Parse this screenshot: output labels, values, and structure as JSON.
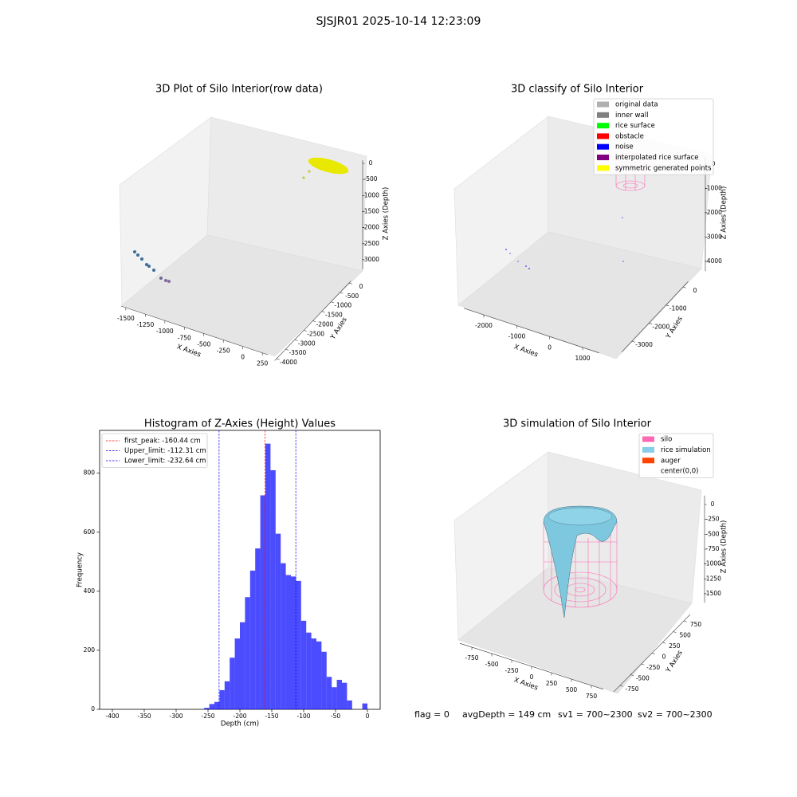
{
  "title": "SJSJR01 2025-10-14 12:23:09",
  "chart_data": [
    {
      "type": "scatter3d",
      "title": "3D Plot of Silo Interior(row data)",
      "xlabel": "X Axies",
      "ylabel": "Y Axies",
      "zlabel": "Z Axies (Depth)",
      "xlim": [
        -1560,
        320
      ],
      "xticks": [
        -1500,
        -1250,
        -1000,
        -750,
        -500,
        -250,
        0,
        250
      ],
      "ylim": [
        -4100,
        100
      ],
      "yticks": [
        0,
        -500,
        -1000,
        -1500,
        -2000,
        -2500,
        -3000,
        -3500,
        -4000
      ],
      "zlim": [
        -3300,
        100
      ],
      "zticks": [
        0,
        -500,
        -1000,
        -1500,
        -2000,
        -2500,
        -3000
      ]
    },
    {
      "type": "scatter3d",
      "title": "3D classify of Silo Interior",
      "xlabel": "X Axies",
      "ylabel": "Y Axies",
      "zlabel": "Z Axies (Depth)",
      "xlim": [
        -2600,
        1500
      ],
      "xticks": [
        -2000,
        -1000,
        0,
        1000
      ],
      "ylim": [
        -3600,
        300
      ],
      "yticks": [
        0,
        -1000,
        -2000,
        -3000
      ],
      "zlim": [
        -4400,
        300
      ],
      "zticks": [
        0,
        -1000,
        -2000,
        -3000,
        -4000
      ],
      "legend_position": "upper right",
      "legend": [
        {
          "name": "original data",
          "color": "#b0b0b0"
        },
        {
          "name": "inner wall",
          "color": "#808080"
        },
        {
          "name": "rice surface",
          "color": "#00ff00"
        },
        {
          "name": "obstacle",
          "color": "#ff0000"
        },
        {
          "name": "noise",
          "color": "#0000ff"
        },
        {
          "name": "interpolated rice surface",
          "color": "#800080"
        },
        {
          "name": "symmetric generated points",
          "color": "#ffff00"
        }
      ]
    },
    {
      "type": "histogram",
      "title": "Histogram of Z-Axies (Height) Values",
      "xlabel": "Depth (cm)",
      "ylabel": "Frequency",
      "color": "#0000ff",
      "opacity": 0.7,
      "bins": [
        -400,
        -392,
        -384,
        -376,
        -368,
        -360,
        -352,
        -344,
        -336,
        -328,
        -320,
        -312,
        -304,
        -296,
        -288,
        -280,
        -272,
        -264,
        -256,
        -248,
        -240,
        -232,
        -224,
        -216,
        -208,
        -200,
        -192,
        -184,
        -176,
        -168,
        -160,
        -152,
        -144,
        -136,
        -128,
        -120,
        -112,
        -104,
        -96,
        -88,
        -80,
        -72,
        -64,
        -56,
        -48,
        -40,
        -32,
        -24,
        -16,
        -8,
        0
      ],
      "values": [
        0,
        0,
        0,
        0,
        0,
        0,
        0,
        0,
        0,
        0,
        0,
        0,
        0,
        0,
        0,
        0,
        0,
        0,
        5,
        18,
        25,
        65,
        95,
        175,
        240,
        295,
        380,
        470,
        545,
        725,
        900,
        810,
        595,
        495,
        455,
        450,
        435,
        300,
        260,
        240,
        230,
        195,
        110,
        75,
        100,
        90,
        30,
        0,
        0,
        20
      ],
      "lines": [
        {
          "name": "first_peak: -160.44 cm",
          "value": -160.44,
          "color": "#ff0000"
        },
        {
          "name": "Upper_limit: -112.31 cm",
          "value": -112.31,
          "color": "#0000ff"
        },
        {
          "name": "Lower_limit: -232.64 cm",
          "value": -232.64,
          "color": "#0000ff"
        }
      ],
      "legend_position": "upper left",
      "xlim": [
        -420,
        20
      ],
      "xticks": [
        -400,
        -350,
        -300,
        -250,
        -200,
        -150,
        -100,
        -50,
        0
      ],
      "ylim": [
        0,
        945
      ],
      "yticks": [
        0,
        200,
        400,
        600,
        800
      ]
    },
    {
      "type": "surface3d",
      "title": "3D simulation of Silo Interior",
      "xlabel": "X Axies",
      "ylabel": "Y Axies",
      "zlabel": "Z Axies (Depth)",
      "xlim": [
        -900,
        900
      ],
      "xticks": [
        -750,
        -500,
        -250,
        0,
        250,
        500,
        750
      ],
      "ylim": [
        -900,
        900
      ],
      "yticks": [
        750,
        500,
        250,
        0,
        -250,
        -500,
        -750
      ],
      "zlim": [
        -1650,
        150
      ],
      "zticks": [
        0,
        -250,
        -500,
        -750,
        -1000,
        -1250,
        -1500
      ],
      "legend_position": "upper right",
      "legend": [
        {
          "name": "silo",
          "color": "#ff69b4"
        },
        {
          "name": "rice simulation",
          "color": "#87ceeb"
        },
        {
          "name": "auger",
          "color": "#ff4500"
        },
        {
          "name": "center(0,0)",
          "color": "#ffffff"
        }
      ]
    }
  ],
  "status": [
    "flag = 0",
    "avgDepth = 149 cm",
    "sv1 = 700~2300",
    "sv2 = 700~2300"
  ]
}
